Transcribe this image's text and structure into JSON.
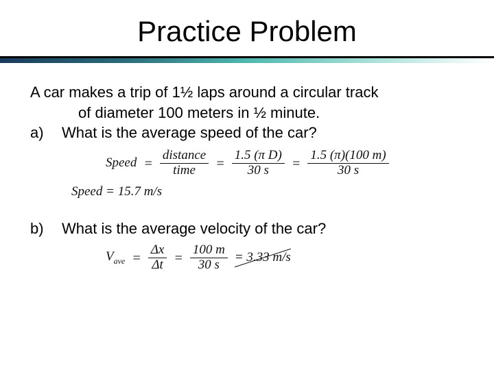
{
  "title": "Practice Problem",
  "problem": {
    "line1": "A car makes a trip of 1½ laps around a circular track",
    "line2": "of diameter 100 meters in ½ minute.",
    "a_label": "a)",
    "a_q": "What is the average speed of the car?",
    "b_label": "b)",
    "b_q": "What is the average velocity of the car?"
  },
  "work_a": {
    "lhs": "Speed",
    "eq": "=",
    "frac1_num": "distance",
    "frac1_den": "time",
    "frac2_num": "1.5 (π D)",
    "frac2_den": "30 s",
    "frac3_num": "1.5 (π)(100 m)",
    "frac3_den": "30 s",
    "result_lhs": "Speed",
    "result_rhs": "= 15.7 m/s"
  },
  "work_b": {
    "lhs": "V",
    "sub": "ave",
    "frac1_num": "Δx",
    "frac1_den": "Δt",
    "frac2_num": "100 m",
    "frac2_den": "30 s",
    "result": "= 3.33 m/s"
  },
  "colors": {
    "text": "#000000",
    "handwriting": "#111111",
    "bg": "#ffffff"
  }
}
